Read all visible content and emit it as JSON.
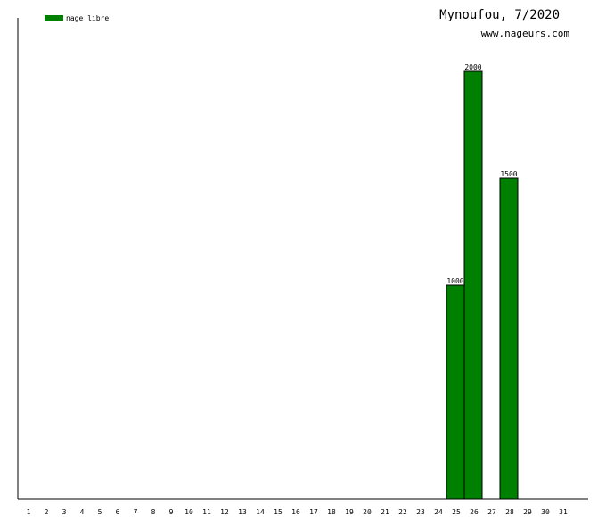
{
  "chart_data": {
    "type": "bar",
    "title": "Mynoufou, 7/2020",
    "subtitle": "www.nageurs.com",
    "xlabel": "",
    "ylabel": "",
    "categories": [
      "1",
      "2",
      "3",
      "4",
      "5",
      "6",
      "7",
      "8",
      "9",
      "10",
      "11",
      "12",
      "13",
      "14",
      "15",
      "16",
      "17",
      "18",
      "19",
      "20",
      "21",
      "22",
      "23",
      "24",
      "25",
      "26",
      "27",
      "28",
      "29",
      "30",
      "31"
    ],
    "series": [
      {
        "name": "nage libre",
        "color": "#008000",
        "values": [
          0,
          0,
          0,
          0,
          0,
          0,
          0,
          0,
          0,
          0,
          0,
          0,
          0,
          0,
          0,
          0,
          0,
          0,
          0,
          0,
          0,
          0,
          0,
          0,
          1000,
          2000,
          0,
          1500,
          0,
          0,
          0
        ]
      }
    ],
    "data_labels": [
      "1000",
      "2000",
      "1500"
    ],
    "ylim": [
      0,
      2250
    ],
    "grid": false,
    "legend_position": "top-left"
  }
}
